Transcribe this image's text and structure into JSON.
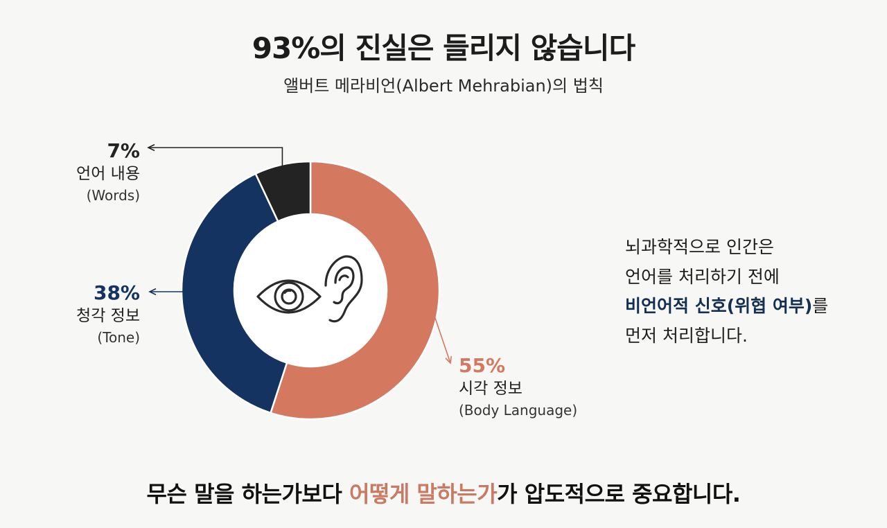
{
  "title": "93%의 진실은 들리지 않습니다",
  "subtitle": "앨버트 메라비언(Albert Mehrabian)의 법칙",
  "chart_data": {
    "type": "pie",
    "donut": true,
    "slices": [
      {
        "pct_label": "55%",
        "name": "시각 정보",
        "en": "(Body Language)",
        "value": 55,
        "color": "#d4795f"
      },
      {
        "pct_label": "38%",
        "name": "청각 정보",
        "en": "(Tone)",
        "value": 38,
        "color": "#143360"
      },
      {
        "pct_label": "7%",
        "name": "언어 내용",
        "en": "(Words)",
        "value": 7,
        "color": "#232323"
      }
    ],
    "center_icons": [
      "eye-icon",
      "ear-icon"
    ]
  },
  "side_note": {
    "line1": "뇌과학적으로 인간은",
    "line2": "언어를 처리하기 전에",
    "line3_emphasis": "비언어적 신호(위협 여부)",
    "line3_rest": "를",
    "line4": "먼저 처리합니다."
  },
  "bottom": {
    "part1": "무슨 말을 하는가보다 ",
    "highlight": "어떻게 말하는가",
    "part2": "가 압도적으로 중요합니다."
  }
}
